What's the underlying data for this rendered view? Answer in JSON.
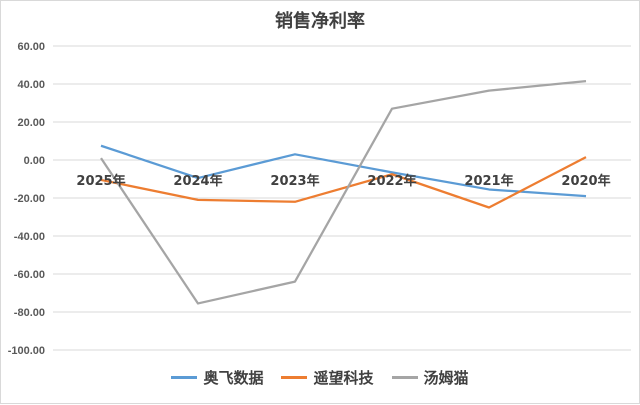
{
  "chart_data": {
    "type": "line",
    "title": "销售净利率",
    "categories": [
      "2025年",
      "2024年",
      "2023年",
      "2022年",
      "2021年",
      "2020年"
    ],
    "ylim": [
      -100,
      60
    ],
    "yticks": [
      "60.00",
      "40.00",
      "20.00",
      "0.00",
      "-20.00",
      "-40.00",
      "-60.00",
      "-80.00",
      "-100.00"
    ],
    "ytick_values": [
      60,
      40,
      20,
      0,
      -20,
      -40,
      -60,
      -80,
      -100
    ],
    "grid": true,
    "legend_position": "bottom",
    "series": [
      {
        "name": "奥飞数据",
        "color": "#5b9bd5",
        "values": [
          7.5,
          -9.5,
          3.0,
          -6.5,
          -15.5,
          -19.0
        ]
      },
      {
        "name": "遥望科技",
        "color": "#ed7d31",
        "values": [
          -10.5,
          -21.0,
          -22.0,
          -7.5,
          -25.0,
          1.5
        ]
      },
      {
        "name": "汤姆猫",
        "color": "#a5a5a5",
        "values": [
          1.0,
          -75.5,
          -64.0,
          27.0,
          36.5,
          41.5
        ]
      }
    ]
  }
}
